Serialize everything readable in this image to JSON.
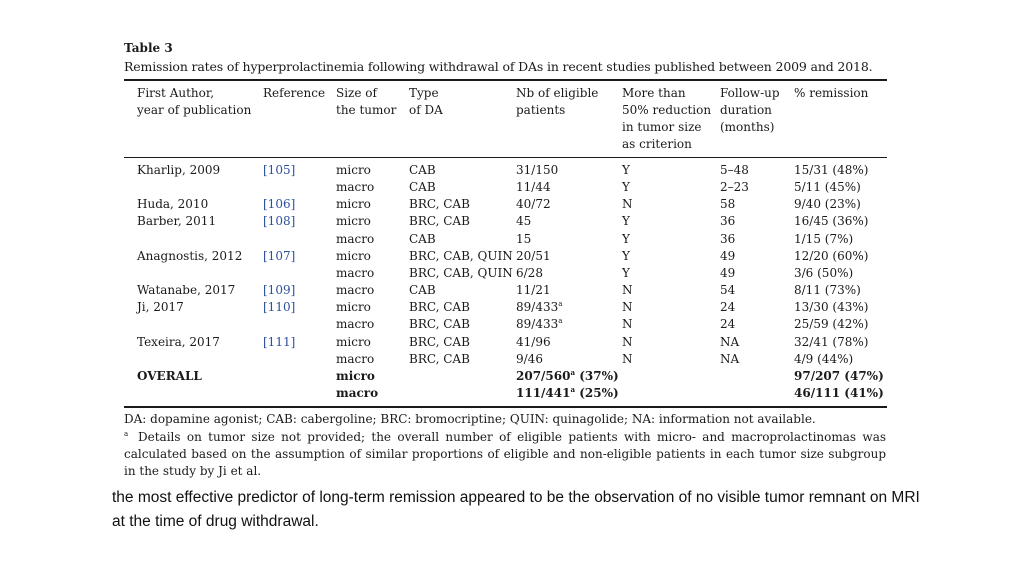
{
  "table": {
    "label": "Table 3",
    "caption": "Remission rates of hyperprolactinemia following withdrawal of DAs in recent studies published between 2009 and 2018.",
    "headers": [
      {
        "key": "author",
        "lines": [
          "First Author,",
          "year of publication"
        ]
      },
      {
        "key": "ref",
        "lines": [
          "Reference"
        ]
      },
      {
        "key": "size",
        "lines": [
          "Size of",
          "the tumor"
        ]
      },
      {
        "key": "type",
        "lines": [
          "Type",
          "of DA"
        ]
      },
      {
        "key": "nb",
        "lines": [
          "Nb of eligible",
          "patients"
        ]
      },
      {
        "key": "more",
        "lines": [
          "More than",
          "50% reduction",
          "in tumor size",
          "as criterion"
        ]
      },
      {
        "key": "fu",
        "lines": [
          "Follow-up",
          "duration",
          "(months)"
        ]
      },
      {
        "key": "rem",
        "lines": [
          "% remission"
        ]
      }
    ],
    "rows": [
      {
        "author": "Kharlip, 2009",
        "ref": "[105]",
        "size": "micro",
        "type": "CAB",
        "nb": "31/150",
        "nb_sup": "",
        "nb_suffix": "",
        "more": "Y",
        "fu": "5–48",
        "rem": "15/31 (48%)"
      },
      {
        "author": "",
        "ref": "",
        "size": "macro",
        "type": "CAB",
        "nb": "11/44",
        "nb_sup": "",
        "nb_suffix": "",
        "more": "Y",
        "fu": "2–23",
        "rem": "5/11 (45%)"
      },
      {
        "author": "Huda, 2010",
        "ref": "[106]",
        "size": "micro",
        "type": "BRC, CAB",
        "nb": "40/72",
        "nb_sup": "",
        "nb_suffix": "",
        "more": "N",
        "fu": "58",
        "rem": "9/40 (23%)"
      },
      {
        "author": "Barber, 2011",
        "ref": "[108]",
        "size": "micro",
        "type": "BRC, CAB",
        "nb": "45",
        "nb_sup": "",
        "nb_suffix": "",
        "more": "Y",
        "fu": "36",
        "rem": "16/45 (36%)"
      },
      {
        "author": "",
        "ref": "",
        "size": "macro",
        "type": "CAB",
        "nb": "15",
        "nb_sup": "",
        "nb_suffix": "",
        "more": "Y",
        "fu": "36",
        "rem": "1/15 (7%)"
      },
      {
        "author": "Anagnostis, 2012",
        "ref": "[107]",
        "size": "micro",
        "type": "BRC, CAB, QUIN",
        "nb": "20/51",
        "nb_sup": "",
        "nb_suffix": "",
        "more": "Y",
        "fu": "49",
        "rem": "12/20 (60%)"
      },
      {
        "author": "",
        "ref": "",
        "size": "macro",
        "type": "BRC, CAB, QUIN",
        "nb": "6/28",
        "nb_sup": "",
        "nb_suffix": "",
        "more": "Y",
        "fu": "49",
        "rem": "3/6 (50%)"
      },
      {
        "author": "Watanabe, 2017",
        "ref": "[109]",
        "size": "macro",
        "type": "CAB",
        "nb": "11/21",
        "nb_sup": "",
        "nb_suffix": "",
        "more": "N",
        "fu": "54",
        "rem": "8/11 (73%)"
      },
      {
        "author": "Ji, 2017",
        "ref": "[110]",
        "size": "micro",
        "type": "BRC, CAB",
        "nb": "89/433",
        "nb_sup": "a",
        "nb_suffix": "",
        "more": "N",
        "fu": "24",
        "rem": "13/30 (43%)"
      },
      {
        "author": "",
        "ref": "",
        "size": "macro",
        "type": "BRC, CAB",
        "nb": "89/433",
        "nb_sup": "a",
        "nb_suffix": "",
        "more": "N",
        "fu": "24",
        "rem": "25/59 (42%)"
      },
      {
        "author": "Texeira, 2017",
        "ref": "[111]",
        "size": "micro",
        "type": "BRC, CAB",
        "nb": "41/96",
        "nb_sup": "",
        "nb_suffix": "",
        "more": "N",
        "fu": "NA",
        "rem": "32/41 (78%)"
      },
      {
        "author": "",
        "ref": "",
        "size": "macro",
        "type": "BRC, CAB",
        "nb": "9/46",
        "nb_sup": "",
        "nb_suffix": "",
        "more": "N",
        "fu": "NA",
        "rem": "4/9 (44%)"
      },
      {
        "author": "OVERALL",
        "ref": "",
        "size": "micro",
        "type": "",
        "nb": "207/560",
        "nb_sup": "a",
        "nb_suffix": " (37%)",
        "more": "",
        "fu": "",
        "rem": "97/207 (47%)",
        "bold": true
      },
      {
        "author": "",
        "ref": "",
        "size": "macro",
        "type": "",
        "nb": "111/441",
        "nb_sup": "a",
        "nb_suffix": " (25%)",
        "more": "",
        "fu": "",
        "rem": "46/111 (41%)",
        "bold": true
      }
    ],
    "footnote_abbrev": "DA: dopamine agonist; CAB: cabergoline; BRC: bromocriptine; QUIN: quinagolide; NA: information not available.",
    "footnote_mark": "a",
    "footnote_a": "Details on tumor size not provided; the overall number of eligible patients with micro- and macroprolactinomas was calculated based on the assumption of similar proportions of eligible and non-eligible patients in each tumor size subgroup in the study by Ji et al."
  },
  "slide_text": "the most effective predictor of long-term remission appeared to be the observation of no visible tumor remnant on MRI at the time of drug withdrawal."
}
